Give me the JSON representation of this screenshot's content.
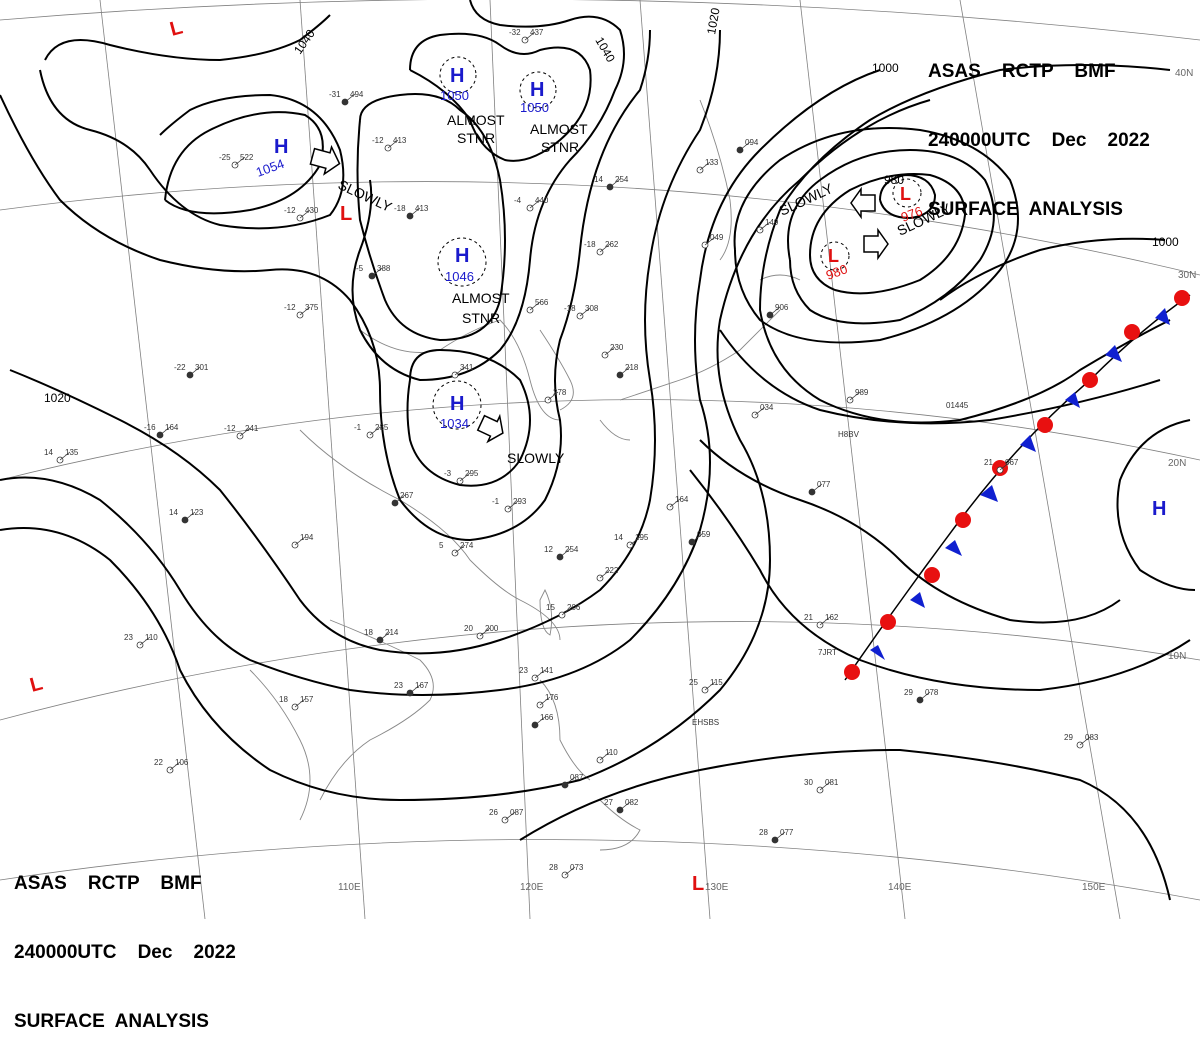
{
  "header": {
    "line1": "ASAS    RCTP    BMF",
    "line2": "240000UTC    Dec    2022",
    "line3": "SURFACE  ANALYSIS"
  },
  "colors": {
    "high": "#1a1acc",
    "low": "#e01010",
    "isobar": "#000000",
    "grid": "#808080",
    "coast": "#777777",
    "warm_front": "#e81010",
    "cold_front": "#1020d0"
  },
  "lat_labels": [
    "40N",
    "30N",
    "20N",
    "10N"
  ],
  "lon_labels": [
    "110E",
    "120E",
    "130E",
    "140E",
    "150E"
  ],
  "isobar_labels": [
    "1040",
    "1040",
    "1020",
    "1000",
    "1000",
    "980",
    "1020"
  ],
  "highs": [
    {
      "letter": "H",
      "pressure": "1050"
    },
    {
      "letter": "H",
      "pressure": "1050"
    },
    {
      "letter": "H",
      "pressure": "1054"
    },
    {
      "letter": "H",
      "pressure": "1046"
    },
    {
      "letter": "H",
      "pressure": "1034"
    },
    {
      "letter": "H",
      "pressure": ""
    }
  ],
  "lows": [
    {
      "letter": "L",
      "pressure": "976"
    },
    {
      "letter": "L",
      "pressure": "980"
    },
    {
      "letter": "L",
      "pressure": ""
    },
    {
      "letter": "L",
      "pressure": ""
    },
    {
      "letter": "L",
      "pressure": ""
    },
    {
      "letter": "L",
      "pressure": ""
    }
  ],
  "motion_labels": [
    "SLOWLY",
    "SLOWLY",
    "SLOWLY",
    "SLOWLY",
    "ALMOST STNR",
    "ALMOST STNR",
    "ALMOST STNR"
  ],
  "motion_words": {
    "slowly": "SLOWLY",
    "almost": "ALMOST",
    "stnr": "STNR"
  },
  "stations": [
    {
      "temp": "-31",
      "pres": "494"
    },
    {
      "temp": "-25",
      "pres": "522"
    },
    {
      "temp": "-12",
      "pres": "413"
    },
    {
      "temp": "-18",
      "pres": "413"
    },
    {
      "temp": "-12",
      "pres": "430"
    },
    {
      "temp": "-32",
      "pres": "437"
    },
    {
      "temp": "-5",
      "pres": "388"
    },
    {
      "temp": "-12",
      "pres": "375"
    },
    {
      "temp": "-4",
      "pres": "440"
    },
    {
      "temp": "14",
      "pres": "254"
    },
    {
      "temp": "-18",
      "pres": "262"
    },
    {
      "temp": "-18",
      "pres": "308"
    },
    {
      "temp": "-22",
      "pres": "301"
    },
    {
      "temp": "-12",
      "pres": "241"
    },
    {
      "temp": "-1",
      "pres": "285"
    },
    {
      "temp": "-16",
      "pres": "164"
    },
    {
      "temp": "-3",
      "pres": "295"
    },
    {
      "temp": "-1",
      "pres": "293"
    },
    {
      "temp": "",
      "pres": "267"
    },
    {
      "temp": "",
      "pres": "194"
    },
    {
      "temp": "5",
      "pres": "274"
    },
    {
      "temp": "12",
      "pres": "254"
    },
    {
      "temp": "",
      "pres": "222"
    },
    {
      "temp": "15",
      "pres": "206"
    },
    {
      "temp": "18",
      "pres": "214"
    },
    {
      "temp": "20",
      "pres": "200"
    },
    {
      "temp": "23",
      "pres": "110"
    },
    {
      "temp": "23",
      "pres": "167"
    },
    {
      "temp": "18",
      "pres": "157"
    },
    {
      "temp": "22",
      "pres": "106"
    },
    {
      "temp": "14",
      "pres": "123"
    },
    {
      "temp": "14",
      "pres": "135"
    },
    {
      "temp": "",
      "pres": "278"
    },
    {
      "temp": "",
      "pres": "218"
    },
    {
      "temp": "",
      "pres": "230"
    },
    {
      "temp": "",
      "pres": "133"
    },
    {
      "temp": "",
      "pres": "094"
    },
    {
      "temp": "",
      "pres": "049"
    },
    {
      "temp": "",
      "pres": "149"
    },
    {
      "temp": "",
      "pres": "906"
    },
    {
      "temp": "",
      "pres": "989"
    },
    {
      "temp": "",
      "pres": "034"
    },
    {
      "temp": "",
      "pres": "077"
    },
    {
      "temp": "21",
      "pres": "067"
    },
    {
      "temp": "21",
      "pres": "162"
    },
    {
      "temp": "29",
      "pres": "078"
    },
    {
      "temp": "29",
      "pres": "083"
    },
    {
      "temp": "30",
      "pres": "081"
    },
    {
      "temp": "28",
      "pres": "077"
    },
    {
      "temp": "25",
      "pres": "115"
    },
    {
      "temp": "",
      "pres": "164"
    },
    {
      "temp": "",
      "pres": "059"
    },
    {
      "temp": "14",
      "pres": "195"
    },
    {
      "temp": "26",
      "pres": "087"
    },
    {
      "temp": "27",
      "pres": "082"
    },
    {
      "temp": "28",
      "pres": "073"
    },
    {
      "temp": "",
      "pres": "110"
    },
    {
      "temp": "",
      "pres": "087"
    },
    {
      "temp": "23",
      "pres": "141"
    },
    {
      "temp": "",
      "pres": "176"
    },
    {
      "temp": "",
      "pres": "166"
    },
    {
      "temp": "",
      "pres": "566"
    },
    {
      "temp": "",
      "pres": "341"
    }
  ],
  "ship_ids": [
    "01445",
    "H8BV",
    "7JRT",
    "EHSBS"
  ]
}
